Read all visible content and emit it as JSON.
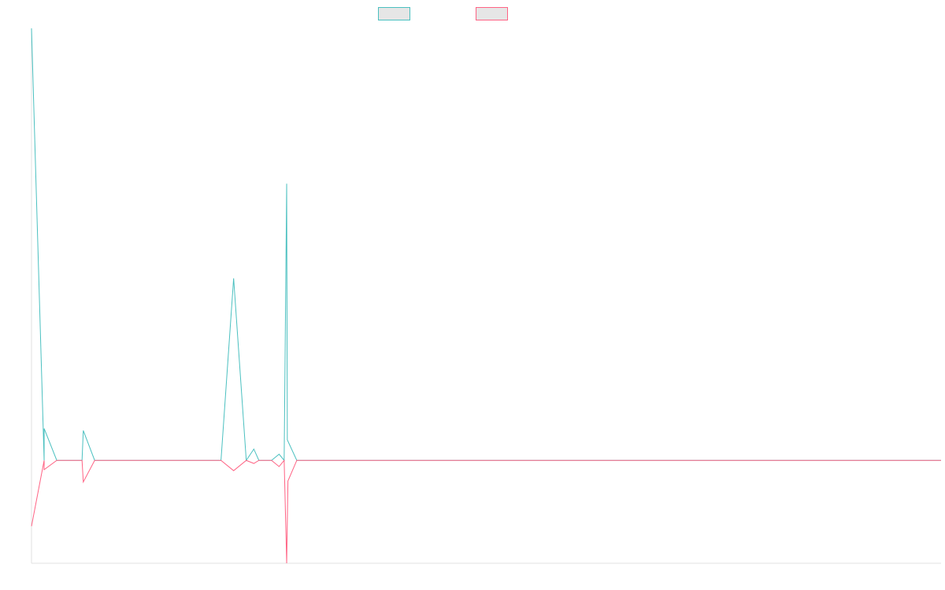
{
  "chart_data": {
    "type": "line",
    "title": "",
    "xlabel": "",
    "ylabel": "",
    "grid": false,
    "legend": {
      "placement": "top-center"
    },
    "x": [
      0,
      1,
      2,
      3,
      4,
      5,
      6,
      7,
      8,
      9,
      10,
      11,
      12,
      13,
      14,
      15,
      16,
      17,
      18,
      19,
      20,
      21,
      22,
      23,
      24,
      25,
      26,
      27,
      28,
      29,
      30,
      31,
      32,
      33,
      34,
      35,
      36,
      37,
      38,
      39,
      40,
      41,
      42,
      43,
      44,
      45,
      46,
      47,
      48,
      49,
      50,
      51,
      52,
      53,
      54,
      55,
      56,
      57,
      58,
      59,
      60,
      61,
      62,
      63,
      64,
      65,
      66,
      67,
      68,
      69,
      70,
      71,
      72
    ],
    "ylim": [
      -100,
      420
    ],
    "series": [
      {
        "name": "",
        "color": "#4bc0c0",
        "values": [
          420,
          0,
          0,
          0,
          0,
          0,
          0,
          0,
          0,
          0,
          0,
          0,
          0,
          0,
          0,
          0,
          177,
          0,
          0,
          0,
          0,
          0,
          0,
          0,
          0,
          0,
          0,
          0,
          0,
          0,
          0,
          0,
          0,
          0,
          0,
          0,
          0,
          0,
          0,
          0,
          0,
          0,
          0,
          0,
          0,
          0,
          0,
          0,
          0,
          0,
          0,
          0,
          0,
          0,
          0,
          0,
          0,
          0,
          0,
          0,
          0,
          0,
          0,
          0,
          0,
          0,
          0,
          0,
          0,
          0,
          0,
          0,
          0
        ],
        "spikes": [
          {
            "x": 1,
            "value": 31
          },
          {
            "x": 4.1,
            "value": 29
          },
          {
            "x": 17.6,
            "value": 11
          },
          {
            "x": 19.6,
            "value": 6
          },
          {
            "x": 20.2,
            "value": 269
          },
          {
            "x": 20.25,
            "value": 20
          }
        ]
      },
      {
        "name": "",
        "color": "#ff6384",
        "values": [
          -64,
          0,
          0,
          0,
          0,
          0,
          0,
          0,
          0,
          0,
          0,
          0,
          0,
          0,
          0,
          0,
          -10,
          0,
          0,
          0,
          0,
          0,
          0,
          0,
          0,
          0,
          0,
          0,
          0,
          0,
          0,
          0,
          0,
          0,
          0,
          0,
          0,
          0,
          0,
          0,
          0,
          0,
          0,
          0,
          0,
          0,
          0,
          0,
          0,
          0,
          0,
          0,
          0,
          0,
          0,
          0,
          0,
          0,
          0,
          0,
          0,
          0,
          0,
          0,
          0,
          0,
          0,
          0,
          0,
          0,
          0,
          0,
          0
        ],
        "spikes": [
          {
            "x": 1,
            "value": -9
          },
          {
            "x": 4.1,
            "value": -21
          },
          {
            "x": 17.6,
            "value": -3
          },
          {
            "x": 19.6,
            "value": -6
          },
          {
            "x": 20.2,
            "value": -100
          },
          {
            "x": 20.3,
            "value": -20
          }
        ]
      }
    ]
  }
}
